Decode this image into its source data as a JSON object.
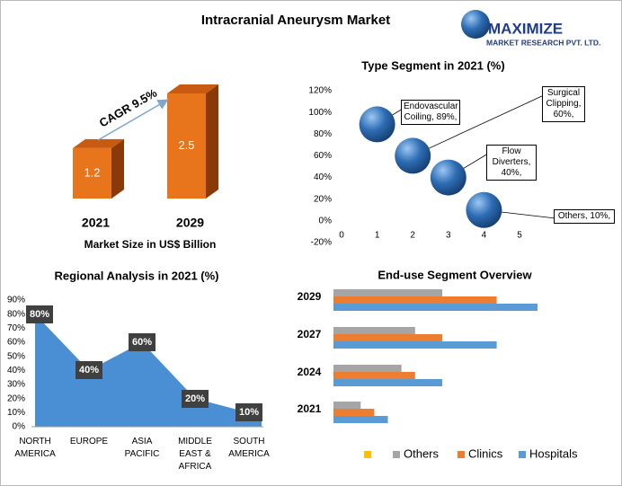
{
  "logo": {
    "name": "MAXIMIZE",
    "subtitle": "MARKET RESEARCH PVT. LTD."
  },
  "chart_data": [
    {
      "type": "bar3d",
      "title": "Intracranial Aneurysm Market",
      "categories": [
        "2021",
        "2029"
      ],
      "values": [
        1.2,
        2.5
      ],
      "color": "#e8741c",
      "annotation": "CAGR 9.5%",
      "xlabel": "Market Size in US$ Billion"
    },
    {
      "type": "bubble",
      "title": "Type Segment in 2021 (%)",
      "x": [
        1,
        2,
        3,
        4
      ],
      "values": [
        89,
        60,
        40,
        10
      ],
      "value_labels": [
        "Endovascular Coiling, 89%,",
        "Surgical Clipping, 60%,",
        "Flow Diverters, 40%,",
        "Others, 10%,"
      ],
      "color": "#2e6db4",
      "xlim": [
        0,
        5
      ],
      "xticks": [
        0,
        1,
        2,
        3,
        4,
        5
      ],
      "ylim": [
        -20,
        120
      ],
      "yticks": [
        {
          "value": -20,
          "label": "-20%"
        },
        {
          "value": 0,
          "label": "0%"
        },
        {
          "value": 20,
          "label": "20%"
        },
        {
          "value": 40,
          "label": "40%"
        },
        {
          "value": 60,
          "label": "60%"
        },
        {
          "value": 80,
          "label": "80%"
        },
        {
          "value": 100,
          "label": "100%"
        },
        {
          "value": 120,
          "label": "120%"
        }
      ]
    },
    {
      "type": "area",
      "title": "Regional Analysis in 2021 (%)",
      "categories": [
        "NORTH AMERICA",
        "EUROPE",
        "ASIA PACIFIC",
        "MIDDLE EAST & AFRICA",
        "SOUTH AMERICA"
      ],
      "values": [
        80,
        40,
        60,
        20,
        10
      ],
      "value_labels": [
        "80%",
        "40%",
        "60%",
        "20%",
        "10%"
      ],
      "color": "#4a8fd4",
      "ylim": [
        0,
        90
      ],
      "yticks": [
        {
          "value": 0,
          "label": "0%"
        },
        {
          "value": 10,
          "label": "10%"
        },
        {
          "value": 20,
          "label": "20%"
        },
        {
          "value": 30,
          "label": "30%"
        },
        {
          "value": 40,
          "label": "40%"
        },
        {
          "value": 50,
          "label": "50%"
        },
        {
          "value": 60,
          "label": "60%"
        },
        {
          "value": 70,
          "label": "70%"
        },
        {
          "value": 80,
          "label": "80%"
        },
        {
          "value": 90,
          "label": "90%"
        }
      ]
    },
    {
      "type": "hbar",
      "title": "End-use Segment Overview",
      "categories": [
        "2029",
        "2027",
        "2024",
        "2021"
      ],
      "series": [
        {
          "name": "Others",
          "color": "#a5a5a5",
          "values": [
            4,
            3,
            2.5,
            1
          ]
        },
        {
          "name": "Clinics",
          "color": "#ed7d31",
          "values": [
            6,
            4,
            3,
            1.5
          ]
        },
        {
          "name": "Hospitals",
          "color": "#5b9bd5",
          "values": [
            7.5,
            6,
            4,
            2
          ]
        }
      ]
    }
  ]
}
